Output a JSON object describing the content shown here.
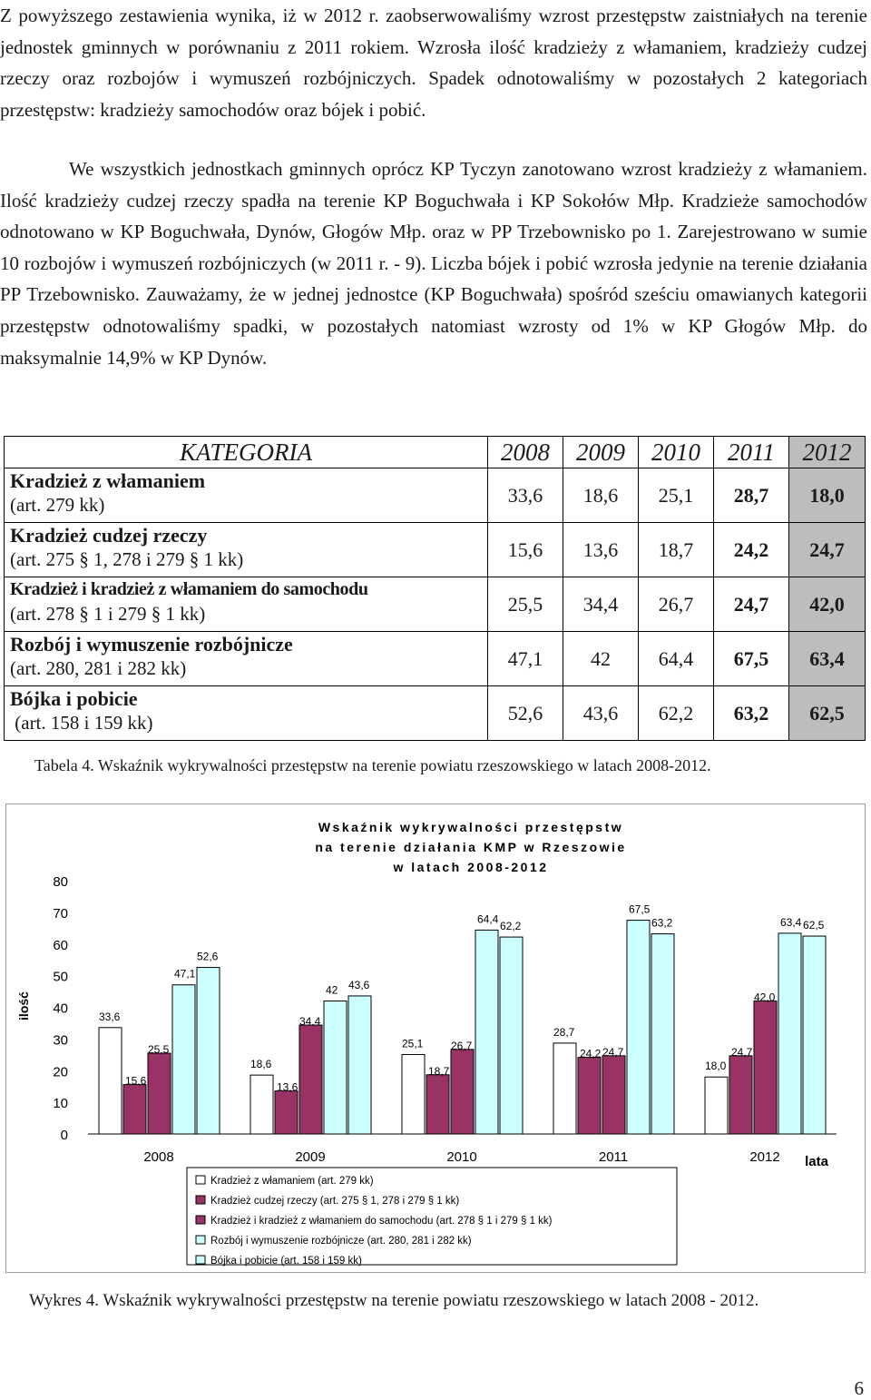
{
  "paragraphs": {
    "p1": "Z powyższego zestawienia wynika, iż w 2012 r. zaobserwowaliśmy wzrost przestępstw zaistniałych na terenie jednostek gminnych w porównaniu z 2011 rokiem. Wzrosła ilość kradzieży z włamaniem, kradzieży cudzej rzeczy oraz rozbojów i wymuszeń rozbójniczych. Spadek odnotowaliśmy w pozostałych 2 kategoriach przestępstw: kradzieży samochodów oraz bójek i pobić.",
    "p2": "We wszystkich jednostkach gminnych oprócz KP Tyczyn zanotowano wzrost kradzieży z włamaniem. Ilość kradzieży cudzej rzeczy spadła na terenie KP Boguchwała i KP Sokołów Młp. Kradzieże samochodów odnotowano w KP Boguchwała, Dynów, Głogów Młp. oraz w PP Trzebownisko po 1. Zarejestrowano w sumie 10 rozbojów i wymuszeń rozbójniczych (w 2011 r. - 9). Liczba bójek i pobić wzrosła jedynie na terenie działania PP Trzebownisko. Zauważamy, że w jednej jednostce (KP Boguchwała) spośród sześciu omawianych kategorii przestępstw odnotowaliśmy spadki, w pozostałych natomiast wzrosty od 1% w KP Głogów Młp. do maksymalnie 14,9% w KP Dynów."
  },
  "table": {
    "header": {
      "category": "KATEGORIA",
      "years": [
        "2008",
        "2009",
        "2010",
        "2011",
        "2012"
      ]
    },
    "rows": [
      {
        "title": "Kradzież z włamaniem",
        "art": "(art. 279 kk)",
        "values": [
          "33,6",
          "18,6",
          "25,1",
          "28,7",
          "18,0"
        ]
      },
      {
        "title": "Kradzież cudzej rzeczy",
        "art": "(art. 275 § 1, 278 i 279 § 1 kk)",
        "values": [
          "15,6",
          "13,6",
          "18,7",
          "24,2",
          "24,7"
        ]
      },
      {
        "title": "Kradzież i kradzież z włamaniem do samochodu",
        "art": "(art. 278 § 1 i 279 § 1 kk)",
        "values": [
          "25,5",
          "34,4",
          "26,7",
          "24,7",
          "42,0"
        ]
      },
      {
        "title": "Rozbój i wymuszenie rozbójnicze",
        "art": "(art. 280, 281 i 282 kk)",
        "values": [
          "47,1",
          "42",
          "64,4",
          "67,5",
          "63,4"
        ]
      },
      {
        "title": "Bójka i pobicie",
        "art": " (art. 158 i 159 kk)",
        "values": [
          "52,6",
          "43,6",
          "62,2",
          "63,2",
          "62,5"
        ]
      }
    ],
    "caption": "Tabela 4.  Wskaźnik wykrywalności przestępstw na terenie powiatu rzeszowskiego w latach 2008-2012."
  },
  "chart_data": {
    "type": "bar",
    "title_lines": [
      "Wskaźnik wykrywalności przestępstw",
      "na terenie działania KMP w Rzeszowie",
      "w latach 2008-2012"
    ],
    "categories": [
      "2008",
      "2009",
      "2010",
      "2011",
      "2012"
    ],
    "xlabel": "lata",
    "ylabel": "ilość",
    "ylim": [
      0,
      80
    ],
    "yticks": [
      0,
      10,
      20,
      30,
      40,
      50,
      60,
      70,
      80
    ],
    "series": [
      {
        "name": "Kradzież z włamaniem (art. 279 kk)",
        "color": "#ffffff",
        "values": [
          33.6,
          18.6,
          25.1,
          28.7,
          18.0
        ],
        "labels": [
          "33,6",
          "18,6",
          "25,1",
          "28,7",
          "18,0"
        ]
      },
      {
        "name": "Kradzież cudzej rzeczy  (art. 275 § 1, 278 i 279 § 1 kk)",
        "color": "#993366",
        "values": [
          15.6,
          13.6,
          18.7,
          24.2,
          24.7
        ],
        "labels": [
          "15,6",
          "13,6",
          "18,7",
          "24,2",
          "24,7"
        ]
      },
      {
        "name": "Kradzież i kradzież z włamaniem do samochodu (art. 278 § 1 i 279 § 1 kk)",
        "color": "#993366",
        "values": [
          25.5,
          34.4,
          26.7,
          24.7,
          42.0
        ],
        "labels": [
          "25,5",
          "34,4",
          "26,7",
          "24,7",
          "42,0"
        ]
      },
      {
        "name": "Rozbój i wymuszenie rozbójnicze (art. 280, 281 i 282 kk)",
        "color": "#ccffff",
        "values": [
          47.1,
          42,
          64.4,
          67.5,
          63.4
        ],
        "labels": [
          "47,1",
          "42",
          "64,4",
          "67,5",
          "63,4"
        ]
      },
      {
        "name": "Bójka i pobicie (art. 158 i 159 kk)",
        "color": "#ccffff",
        "values": [
          52.6,
          43.6,
          62.2,
          63.2,
          62.5
        ],
        "labels": [
          "52,6",
          "43,6",
          "62,2",
          "63,2",
          "62,5"
        ]
      }
    ],
    "legend_position": "bottom",
    "caption": "Wykres 4. Wskaźnik wykrywalności przestępstw na terenie powiatu rzeszowskiego w latach 2008 - 2012."
  },
  "page_number": "6"
}
